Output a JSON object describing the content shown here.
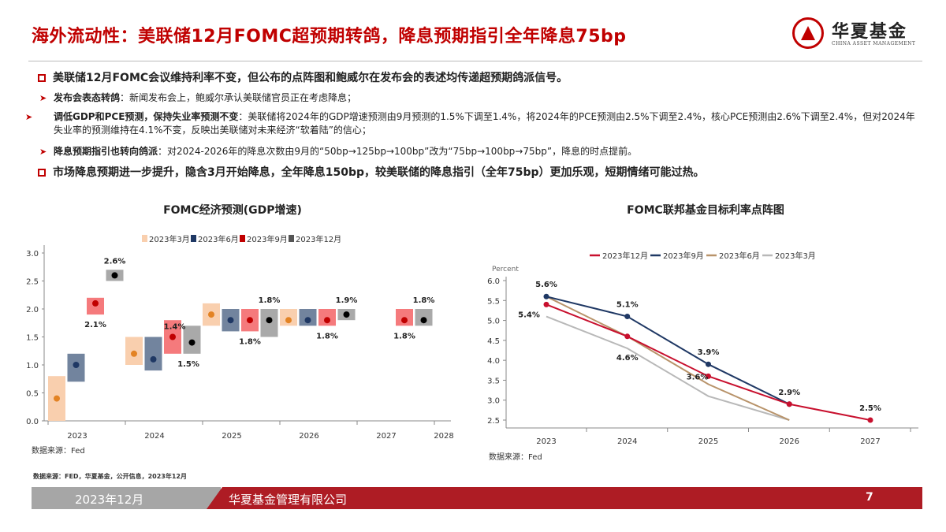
{
  "header": {
    "title": "海外流动性：美联储12月FOMC超预期转鸽，降息预期指引全年降息75bp",
    "logo_cn": "华夏基金",
    "logo_en": "CHINA ASSET MANAGEMENT",
    "brand_color": "#c00000"
  },
  "bullets": [
    {
      "level": 1,
      "bold": "美联储12月FOMC会议维持利率不变，但公布的点阵图和鲍威尔在发布会的表述均传递超预期鸽派信号。",
      "text": ""
    },
    {
      "level": 2,
      "bold": "发布会表态转鸽",
      "text": "：新闻发布会上，鲍威尔承认美联储官员正在考虑降息；"
    },
    {
      "level": 2,
      "bold": "调低GDP和PCE预测，保持失业率预测不变",
      "text": "：美联储将2024年的GDP增速预测由9月预测的1.5%下调至1.4%，将2024年的PCE预测由2.5%下调至2.4%，核心PCE预测由2.6%下调至2.4%，但对2024年失业率的预测维持在4.1%不变，反映出美联储对未来经济“软着陆”的信心；"
    },
    {
      "level": 2,
      "bold": "降息预期指引也转向鸽派",
      "text": "：对2024-2026年的降息次数由9月的“50bp→125bp→100bp”改为“75bp→100bp→75bp”，降息的时点提前。"
    },
    {
      "level": 1,
      "bold": "市场降息预期进一步提升，隐含3月开始降息，全年降息150bp，较美联储的降息指引（全年75bp）更加乐观，短期情绪可能过热。",
      "text": ""
    }
  ],
  "chart_data": [
    {
      "type": "range-dot",
      "title": "FOMC经济预测(GDP增速)",
      "categories": [
        "2023",
        "2024",
        "2025",
        "2026",
        "2027",
        "2028"
      ],
      "ylim": [
        0,
        3.0
      ],
      "yticks": [
        "0.0",
        "0.5",
        "1.0",
        "1.5",
        "2.0",
        "2.5",
        "3.0"
      ],
      "legend_position": "top",
      "source": "数据来源：Fed",
      "series": [
        {
          "name": "2023年3月",
          "box_color": "#f9cfae",
          "dot_color": "#e38324",
          "data": [
            {
              "year": "2023",
              "low": 0.0,
              "high": 0.8,
              "median": 0.4
            },
            {
              "year": "2024",
              "low": 1.0,
              "high": 1.5,
              "median": 1.2
            },
            {
              "year": "2025",
              "low": 1.7,
              "high": 2.1,
              "median": 1.9
            },
            {
              "year": "2026",
              "low": 1.7,
              "high": 2.0,
              "median": 1.8
            }
          ]
        },
        {
          "name": "2023年6月",
          "box_color": "#72849e",
          "dot_color": "#1f3864",
          "data": [
            {
              "year": "2023",
              "low": 0.7,
              "high": 1.2,
              "median": 1.0
            },
            {
              "year": "2024",
              "low": 0.9,
              "high": 1.5,
              "median": 1.1
            },
            {
              "year": "2025",
              "low": 1.6,
              "high": 2.0,
              "median": 1.8
            },
            {
              "year": "2026",
              "low": 1.7,
              "high": 2.0,
              "median": 1.8
            }
          ]
        },
        {
          "name": "2023年9月",
          "box_color": "#f57a7c",
          "dot_color": "#c00000",
          "data": [
            {
              "year": "2023",
              "low": 1.9,
              "high": 2.2,
              "median": 2.1
            },
            {
              "year": "2024",
              "low": 1.2,
              "high": 1.8,
              "median": 1.5
            },
            {
              "year": "2025",
              "low": 1.6,
              "high": 2.0,
              "median": 1.8
            },
            {
              "year": "2026",
              "low": 1.7,
              "high": 2.0,
              "median": 1.8
            },
            {
              "year": "2027",
              "low": 1.7,
              "high": 2.0,
              "median": 1.8
            }
          ]
        },
        {
          "name": "2023年12月",
          "box_color": "#a9a9a9",
          "dot_color": "#000000",
          "data": [
            {
              "year": "2023",
              "low": 2.5,
              "high": 2.7,
              "median": 2.6
            },
            {
              "year": "2024",
              "low": 1.2,
              "high": 1.7,
              "median": 1.4
            },
            {
              "year": "2025",
              "low": 1.5,
              "high": 2.0,
              "median": 1.8
            },
            {
              "year": "2026",
              "low": 1.8,
              "high": 2.0,
              "median": 1.9
            },
            {
              "year": "2027",
              "low": 1.7,
              "high": 2.0,
              "median": 1.8
            }
          ]
        }
      ],
      "data_labels": [
        {
          "series": "2023年12月",
          "year": "2023",
          "text": "2.6%",
          "place": "above"
        },
        {
          "series": "2023年9月",
          "year": "2023",
          "text": "2.1%",
          "place": "below"
        },
        {
          "series": "2023年12月",
          "year": "2024",
          "text": "1.4%",
          "place": "above-left"
        },
        {
          "series": "2023年9月",
          "year": "2024",
          "text": "1.5%",
          "place": "below-right"
        },
        {
          "series": "2023年12月",
          "year": "2025",
          "text": "1.8%",
          "place": "above"
        },
        {
          "series": "2023年9月",
          "year": "2025",
          "text": "1.8%",
          "place": "below"
        },
        {
          "series": "2023年12月",
          "year": "2026",
          "text": "1.9%",
          "place": "above"
        },
        {
          "series": "2023年9月",
          "year": "2026",
          "text": "1.8%",
          "place": "below"
        },
        {
          "series": "2023年12月",
          "year": "2027",
          "text": "1.8%",
          "place": "above"
        },
        {
          "series": "2023年9月",
          "year": "2027",
          "text": "1.8%",
          "place": "below"
        }
      ]
    },
    {
      "type": "line",
      "title": "FOMC联邦基金目标利率点阵图",
      "ylabel": "Percent",
      "categories": [
        "2023",
        "2024",
        "2025",
        "2026",
        "2027"
      ],
      "ylim": [
        2.5,
        6.0
      ],
      "yticks": [
        "2.5",
        "3.0",
        "3.5",
        "4.0",
        "4.5",
        "5.0",
        "5.5",
        "6.0"
      ],
      "legend_position": "top",
      "source": "数据来源：Fed",
      "series": [
        {
          "name": "2023年12月",
          "color": "#c8102e",
          "markers": true,
          "values": [
            5.4,
            4.6,
            3.6,
            2.9,
            2.5
          ]
        },
        {
          "name": "2023年9月",
          "color": "#1f3864",
          "markers": true,
          "values": [
            5.6,
            5.1,
            3.9,
            2.9,
            null
          ]
        },
        {
          "name": "2023年6月",
          "color": "#b8936a",
          "markers": false,
          "values": [
            5.6,
            4.6,
            3.4,
            2.5,
            null
          ]
        },
        {
          "name": "2023年3月",
          "color": "#b8b8b8",
          "markers": false,
          "values": [
            5.1,
            4.3,
            3.1,
            2.5,
            null
          ]
        }
      ],
      "data_labels": [
        {
          "series": "2023年9月",
          "x": "2023",
          "text": "5.6%",
          "place": "above"
        },
        {
          "series": "2023年12月",
          "x": "2023",
          "text": "5.4%",
          "place": "left-below"
        },
        {
          "series": "2023年9月",
          "x": "2024",
          "text": "5.1%",
          "place": "above"
        },
        {
          "series": "2023年12月",
          "x": "2024",
          "text": "4.6%",
          "place": "below"
        },
        {
          "series": "2023年9月",
          "x": "2025",
          "text": "3.9%",
          "place": "above"
        },
        {
          "series": "2023年12月",
          "x": "2025",
          "text": "3.6%",
          "place": "left"
        },
        {
          "series": "2023年12月",
          "x": "2026",
          "text": "2.9%",
          "place": "above"
        },
        {
          "series": "2023年12月",
          "x": "2027",
          "text": "2.5%",
          "place": "above"
        }
      ]
    }
  ],
  "source_note": "数据来源：FED，华夏基金，公开信息，2023年12月",
  "footer": {
    "date": "2023年12月",
    "company": "华夏基金管理有限公司",
    "page": "7"
  }
}
